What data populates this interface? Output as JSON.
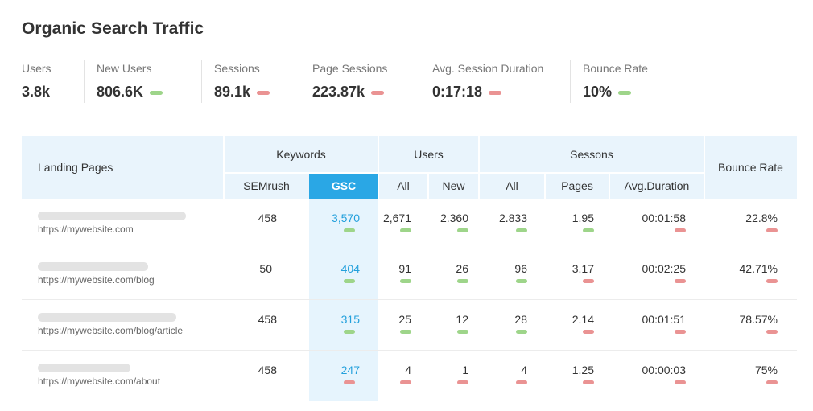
{
  "title": "Organic Search Traffic",
  "colors": {
    "good": "#9ed58a",
    "bad": "#ea9393",
    "accent": "#2aa7e5",
    "header_bg": "#e9f4fc",
    "value_blue": "#23a0dc"
  },
  "metrics": [
    {
      "label": "Users",
      "value": "3.8k",
      "indicator": "none"
    },
    {
      "label": "New Users",
      "value": "806.6K",
      "indicator": "green"
    },
    {
      "label": "Sessions",
      "value": "89.1k",
      "indicator": "red"
    },
    {
      "label": "Page Sessions",
      "value": "223.87k",
      "indicator": "red"
    },
    {
      "label": "Avg. Session Duration",
      "value": "0:17:18",
      "indicator": "red"
    },
    {
      "label": "Bounce Rate",
      "value": "10%",
      "indicator": "green"
    }
  ],
  "table": {
    "header": {
      "landing_pages": "Landing Pages",
      "keywords": "Keywords",
      "users": "Users",
      "sessions": "Sessons",
      "bounce_rate": "Bounce Rate",
      "semrush": "SEMrush",
      "gsc": "GSC",
      "users_all": "All",
      "users_new": "New",
      "sessions_all": "All",
      "sessions_pages": "Pages",
      "sessions_avg_duration": "Avg.Duration"
    },
    "rows": [
      {
        "url": "https://mywebsite.com",
        "semrush": "458",
        "gsc": "3,570",
        "gsc_ind": "green",
        "users_all": "2,671",
        "users_all_ind": "green",
        "users_new": "2.360",
        "users_new_ind": "green",
        "sessions_all": "2.833",
        "sessions_all_ind": "green",
        "pages": "1.95",
        "pages_ind": "green",
        "avg_duration": "00:01:58",
        "avg_duration_ind": "red",
        "bounce_rate": "22.8%",
        "bounce_rate_ind": "red"
      },
      {
        "url": "https://mywebsite.com/blog",
        "semrush": "50",
        "gsc": "404",
        "gsc_ind": "green",
        "users_all": "91",
        "users_all_ind": "green",
        "users_new": "26",
        "users_new_ind": "green",
        "sessions_all": "96",
        "sessions_all_ind": "green",
        "pages": "3.17",
        "pages_ind": "red",
        "avg_duration": "00:02:25",
        "avg_duration_ind": "red",
        "bounce_rate": "42.71%",
        "bounce_rate_ind": "red"
      },
      {
        "url": "https://mywebsite.com/blog/article",
        "semrush": "458",
        "gsc": "315",
        "gsc_ind": "green",
        "users_all": "25",
        "users_all_ind": "green",
        "users_new": "12",
        "users_new_ind": "green",
        "sessions_all": "28",
        "sessions_all_ind": "green",
        "pages": "2.14",
        "pages_ind": "red",
        "avg_duration": "00:01:51",
        "avg_duration_ind": "red",
        "bounce_rate": "78.57%",
        "bounce_rate_ind": "red"
      },
      {
        "url": "https://mywebsite.com/about",
        "semrush": "458",
        "gsc": "247",
        "gsc_ind": "red",
        "users_all": "4",
        "users_all_ind": "red",
        "users_new": "1",
        "users_new_ind": "red",
        "sessions_all": "4",
        "sessions_all_ind": "red",
        "pages": "1.25",
        "pages_ind": "red",
        "avg_duration": "00:00:03",
        "avg_duration_ind": "red",
        "bounce_rate": "75%",
        "bounce_rate_ind": "red"
      }
    ]
  }
}
